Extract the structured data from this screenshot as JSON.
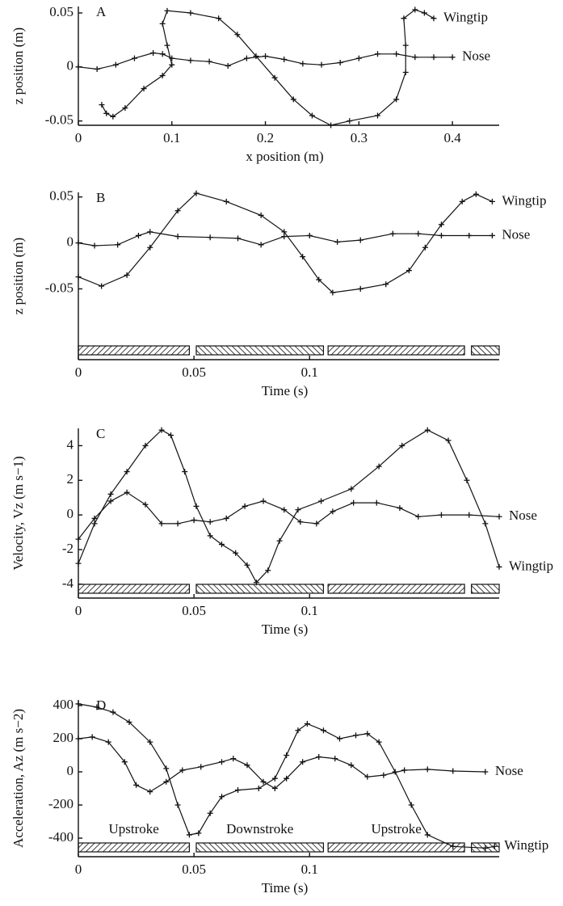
{
  "chart_data": [
    {
      "type": "line",
      "panel_label": "A",
      "x_label": "x position (m)",
      "y_label": "z position (m)",
      "xlim": [
        0,
        0.45
      ],
      "xticks": [
        0,
        0.1,
        0.2,
        0.3,
        0.4
      ],
      "ylim": [
        -0.054,
        0.056
      ],
      "yticks": [
        -0.05,
        0,
        0.05
      ],
      "series": [
        {
          "name": "Wingtip",
          "color": "#111",
          "x": [
            0.025,
            0.03,
            0.037,
            0.05,
            0.07,
            0.09,
            0.1,
            0.095,
            0.09,
            0.095,
            0.12,
            0.15,
            0.17,
            0.19,
            0.21,
            0.23,
            0.25,
            0.27,
            0.29,
            0.32,
            0.34,
            0.35,
            0.35,
            0.348,
            0.36,
            0.37,
            0.38
          ],
          "values": [
            -0.035,
            -0.043,
            -0.046,
            -0.038,
            -0.02,
            -0.008,
            0.002,
            0.02,
            0.04,
            0.052,
            0.05,
            0.045,
            0.03,
            0.01,
            -0.01,
            -0.03,
            -0.045,
            -0.054,
            -0.05,
            -0.045,
            -0.03,
            -0.005,
            0.02,
            0.045,
            0.053,
            0.05,
            0.045
          ]
        },
        {
          "name": "Nose",
          "color": "#111",
          "x": [
            0,
            0.02,
            0.04,
            0.06,
            0.08,
            0.09,
            0.1,
            0.12,
            0.14,
            0.16,
            0.18,
            0.2,
            0.22,
            0.24,
            0.26,
            0.28,
            0.3,
            0.32,
            0.34,
            0.36,
            0.38,
            0.4
          ],
          "values": [
            0,
            -0.002,
            0.002,
            0.008,
            0.013,
            0.012,
            0.008,
            0.006,
            0.005,
            0.001,
            0.008,
            0.01,
            0.007,
            0.003,
            0.002,
            0.004,
            0.008,
            0.012,
            0.012,
            0.009,
            0.009,
            0.009
          ]
        }
      ]
    },
    {
      "type": "line",
      "panel_label": "B",
      "x_label": "Time (s)",
      "y_label": "z position (m)",
      "xlim": [
        0,
        0.182
      ],
      "xticks": [
        0,
        0.05,
        0.1
      ],
      "ylim": [
        -0.127,
        0.055
      ],
      "yticks": [
        -0.05,
        0,
        0.05
      ],
      "phases": [
        {
          "start": 0,
          "end": 0.048
        },
        {
          "start": 0.051,
          "end": 0.106
        },
        {
          "start": 0.108,
          "end": 0.167
        },
        {
          "start": 0.17,
          "end": 0.182
        }
      ],
      "series": [
        {
          "name": "Wingtip",
          "color": "#111",
          "x": [
            0,
            0.01,
            0.021,
            0.031,
            0.043,
            0.051,
            0.064,
            0.079,
            0.089,
            0.097,
            0.104,
            0.11,
            0.122,
            0.133,
            0.143,
            0.15,
            0.157,
            0.166,
            0.172,
            0.179
          ],
          "values": [
            -0.037,
            -0.047,
            -0.035,
            -0.005,
            0.035,
            0.054,
            0.045,
            0.03,
            0.012,
            -0.015,
            -0.04,
            -0.054,
            -0.05,
            -0.045,
            -0.03,
            -0.005,
            0.02,
            0.045,
            0.053,
            0.045
          ]
        },
        {
          "name": "Nose",
          "color": "#111",
          "x": [
            0,
            0.007,
            0.017,
            0.026,
            0.031,
            0.043,
            0.057,
            0.069,
            0.079,
            0.089,
            0.1,
            0.112,
            0.122,
            0.136,
            0.147,
            0.157,
            0.169,
            0.179
          ],
          "values": [
            0,
            -0.003,
            -0.002,
            0.008,
            0.012,
            0.007,
            0.006,
            0.005,
            -0.002,
            0.007,
            0.008,
            0.001,
            0.003,
            0.01,
            0.01,
            0.008,
            0.008,
            0.008
          ]
        }
      ]
    },
    {
      "type": "line",
      "panel_label": "C",
      "x_label": "Time (s)",
      "y_label": "Velocity, Vz (m s−1)",
      "xlim": [
        0,
        0.182
      ],
      "xticks": [
        0,
        0.05,
        0.1
      ],
      "ylim": [
        -4.8,
        5.0
      ],
      "yticks": [
        -4,
        -2,
        0,
        2,
        4
      ],
      "phases": [
        {
          "start": 0,
          "end": 0.048
        },
        {
          "start": 0.051,
          "end": 0.106
        },
        {
          "start": 0.108,
          "end": 0.167
        },
        {
          "start": 0.17,
          "end": 0.182
        }
      ],
      "series": [
        {
          "name": "Nose",
          "color": "#111",
          "x": [
            0,
            0.007,
            0.014,
            0.021,
            0.029,
            0.036,
            0.043,
            0.05,
            0.057,
            0.064,
            0.072,
            0.08,
            0.089,
            0.096,
            0.103,
            0.11,
            0.119,
            0.129,
            0.139,
            0.147,
            0.157,
            0.169,
            0.182
          ],
          "values": [
            -1.4,
            -0.2,
            0.8,
            1.3,
            0.6,
            -0.5,
            -0.5,
            -0.3,
            -0.4,
            -0.2,
            0.5,
            0.8,
            0.3,
            -0.4,
            -0.5,
            0.2,
            0.7,
            0.7,
            0.4,
            -0.1,
            0,
            0,
            -0.1
          ]
        },
        {
          "name": "Wingtip",
          "color": "#111",
          "x": [
            0,
            0.007,
            0.014,
            0.021,
            0.029,
            0.036,
            0.04,
            0.046,
            0.051,
            0.057,
            0.062,
            0.068,
            0.073,
            0.077,
            0.082,
            0.087,
            0.095,
            0.105,
            0.118,
            0.13,
            0.14,
            0.151,
            0.16,
            0.168,
            0.176,
            0.182
          ],
          "values": [
            -2.8,
            -0.5,
            1.2,
            2.5,
            4.0,
            4.9,
            4.6,
            2.5,
            0.5,
            -1.2,
            -1.7,
            -2.2,
            -2.9,
            -3.9,
            -3.2,
            -1.5,
            0.3,
            0.8,
            1.5,
            2.8,
            4.0,
            4.9,
            4.3,
            2.0,
            -0.5,
            -3.0
          ]
        }
      ]
    },
    {
      "type": "line",
      "panel_label": "D",
      "x_label": "Time (s)",
      "y_label": "Acceleration, Az (m s−2)",
      "xlim": [
        0,
        0.182
      ],
      "xticks": [
        0,
        0.05,
        0.1
      ],
      "ylim": [
        -512,
        434
      ],
      "yticks": [
        -400,
        -200,
        0,
        200,
        400
      ],
      "phases": [
        {
          "start": 0,
          "end": 0.048,
          "label": "Upstroke"
        },
        {
          "start": 0.051,
          "end": 0.106,
          "label": "Downstroke"
        },
        {
          "start": 0.108,
          "end": 0.167,
          "label": "Upstroke"
        },
        {
          "start": 0.17,
          "end": 0.182
        }
      ],
      "series": [
        {
          "name": "Nose",
          "color": "#111",
          "x": [
            0,
            0.006,
            0.013,
            0.02,
            0.025,
            0.031,
            0.038,
            0.045,
            0.053,
            0.062,
            0.067,
            0.073,
            0.08,
            0.085,
            0.09,
            0.097,
            0.104,
            0.111,
            0.118,
            0.125,
            0.132,
            0.141,
            0.151,
            0.162,
            0.176
          ],
          "values": [
            200,
            210,
            180,
            60,
            -80,
            -120,
            -60,
            10,
            30,
            60,
            80,
            40,
            -60,
            -100,
            -40,
            60,
            90,
            80,
            40,
            -30,
            -20,
            10,
            15,
            5,
            0
          ]
        },
        {
          "name": "Wingtip",
          "color": "#111",
          "x": [
            0,
            0.008,
            0.015,
            0.022,
            0.031,
            0.038,
            0.043,
            0.048,
            0.052,
            0.057,
            0.062,
            0.069,
            0.078,
            0.085,
            0.09,
            0.095,
            0.099,
            0.106,
            0.113,
            0.12,
            0.125,
            0.13,
            0.137,
            0.144,
            0.151,
            0.162,
            0.176,
            0.18
          ],
          "values": [
            410,
            390,
            360,
            300,
            180,
            20,
            -200,
            -380,
            -370,
            -250,
            -150,
            -110,
            -100,
            -40,
            100,
            250,
            290,
            250,
            200,
            220,
            230,
            180,
            0,
            -200,
            -380,
            -450,
            -460,
            -450
          ]
        }
      ]
    }
  ]
}
